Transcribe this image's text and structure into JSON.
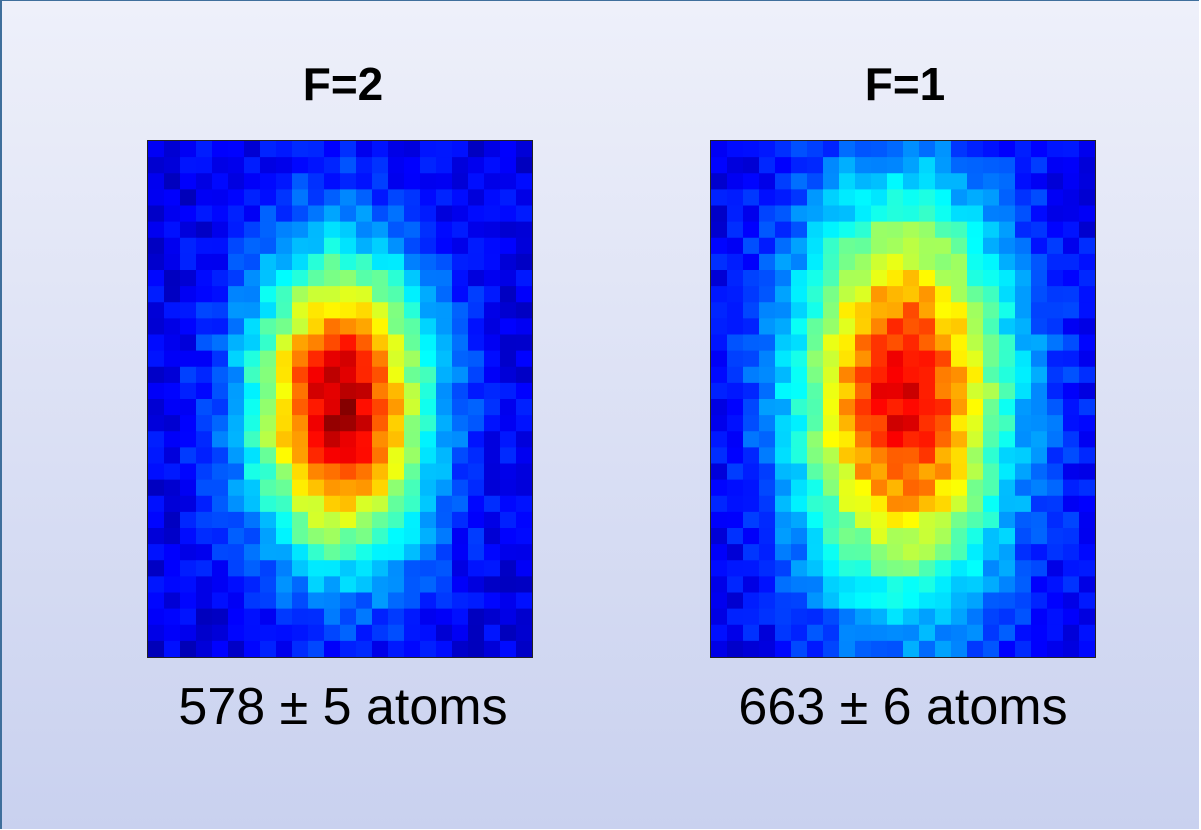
{
  "panels": [
    {
      "title": "F=2",
      "caption": "578 ± 5 atoms"
    },
    {
      "title": "F=1",
      "caption": "663 ± 6 atoms"
    }
  ]
}
